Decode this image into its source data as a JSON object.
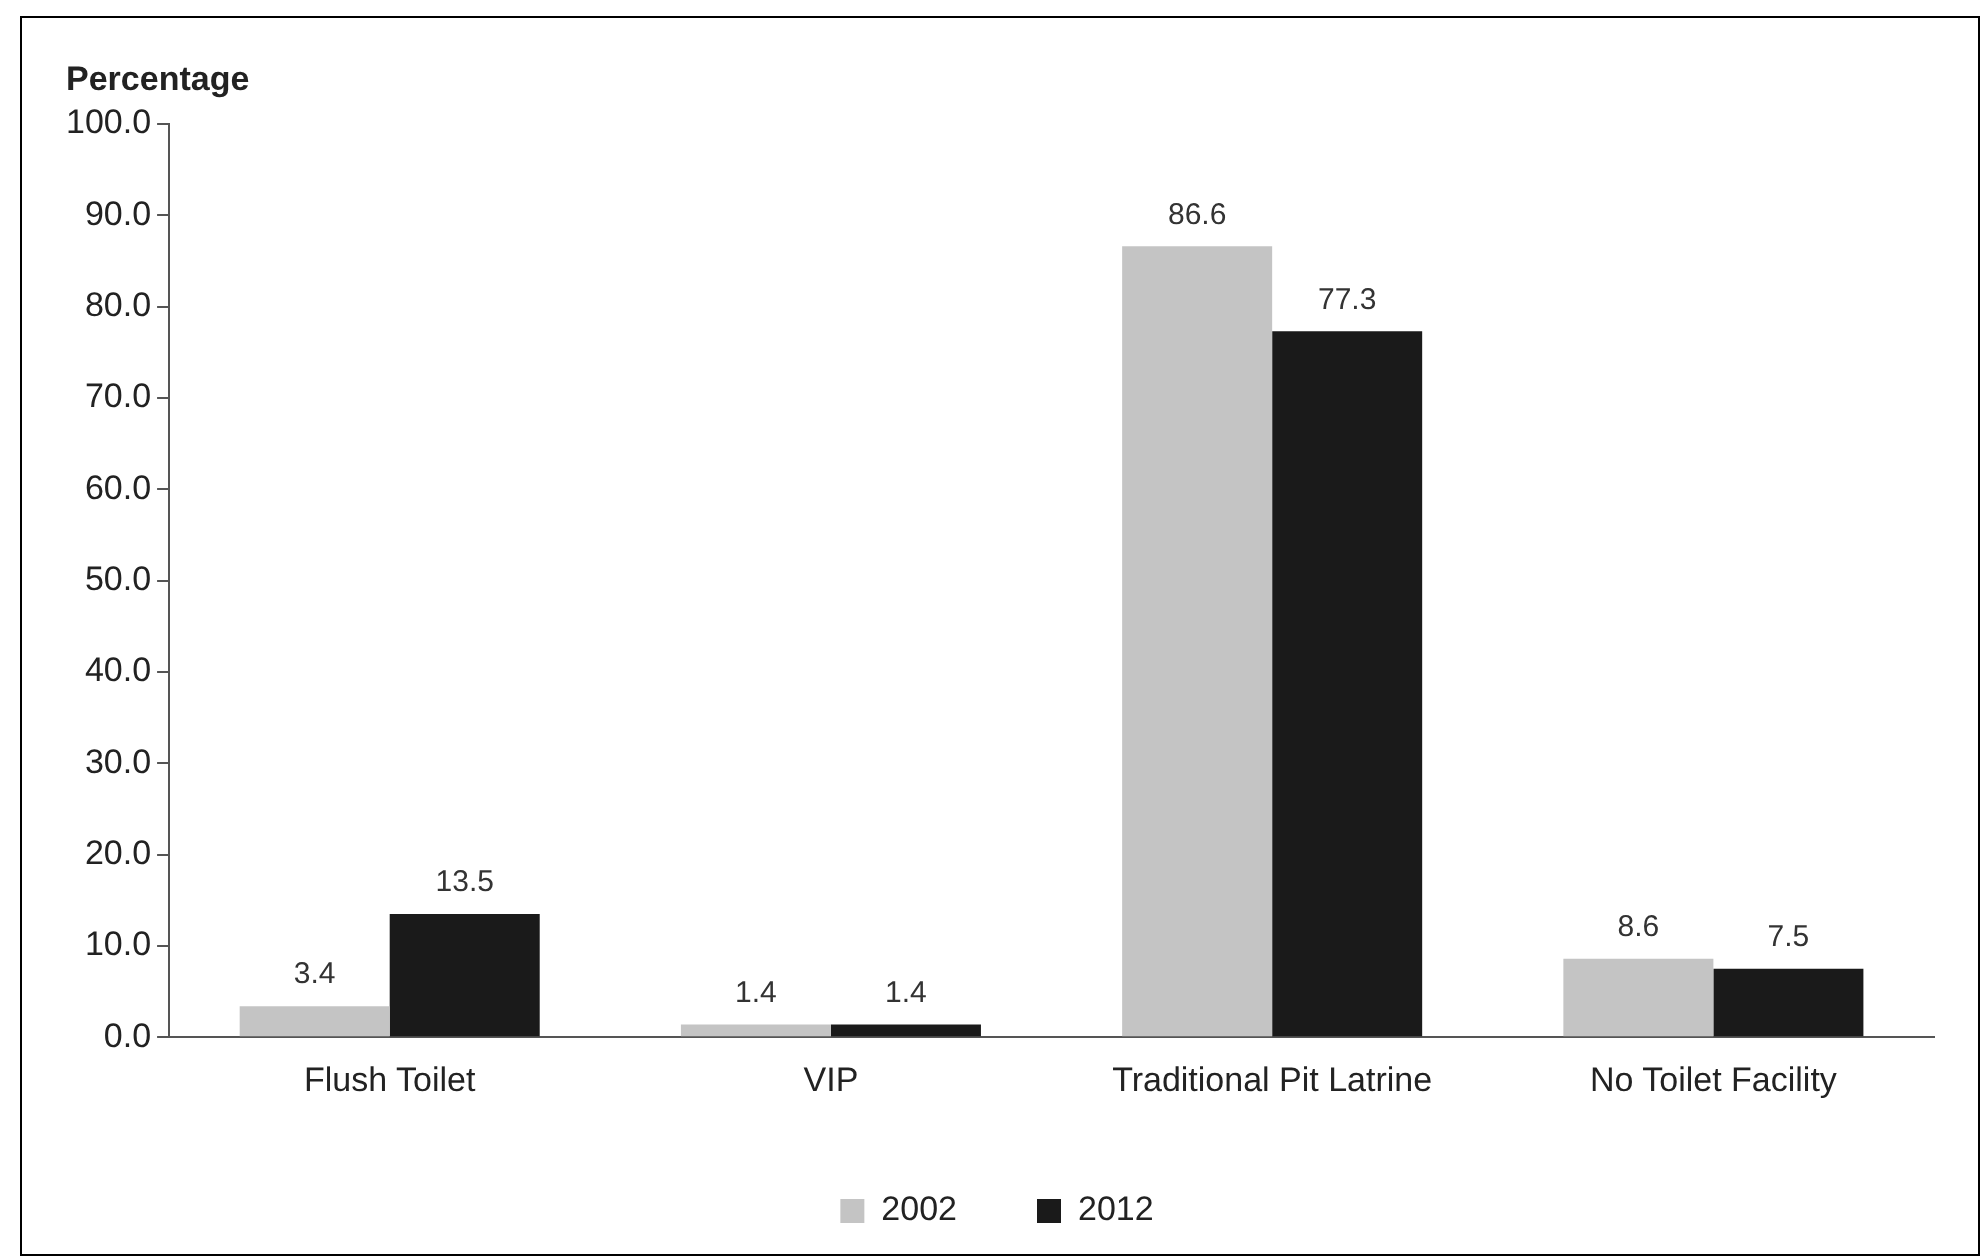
{
  "chart_data": {
    "type": "bar",
    "ylabel": "Percentage",
    "categories": [
      "Flush Toilet",
      "VIP",
      "Traditional Pit Latrine",
      "No Toilet Facility"
    ],
    "series": [
      {
        "name": "2002",
        "color": "#c4c4c4",
        "values": [
          3.4,
          1.4,
          86.6,
          8.6
        ]
      },
      {
        "name": "2012",
        "color": "#1a1a1a",
        "values": [
          13.5,
          1.4,
          77.3,
          7.5
        ]
      }
    ],
    "ylim": [
      0,
      100
    ],
    "yticks": [
      {
        "value": 0,
        "label": "0.0"
      },
      {
        "value": 10,
        "label": "10.0"
      },
      {
        "value": 20,
        "label": "20.0"
      },
      {
        "value": 30,
        "label": "30.0"
      },
      {
        "value": 40,
        "label": "40.0"
      },
      {
        "value": 50,
        "label": "50.0"
      },
      {
        "value": 60,
        "label": "60.0"
      },
      {
        "value": 70,
        "label": "70.0"
      },
      {
        "value": 80,
        "label": "80.0"
      },
      {
        "value": 90,
        "label": "90.0"
      },
      {
        "value": 100,
        "label": "100.0"
      }
    ],
    "grid": false,
    "legend": "bottom",
    "data_labels": true
  }
}
